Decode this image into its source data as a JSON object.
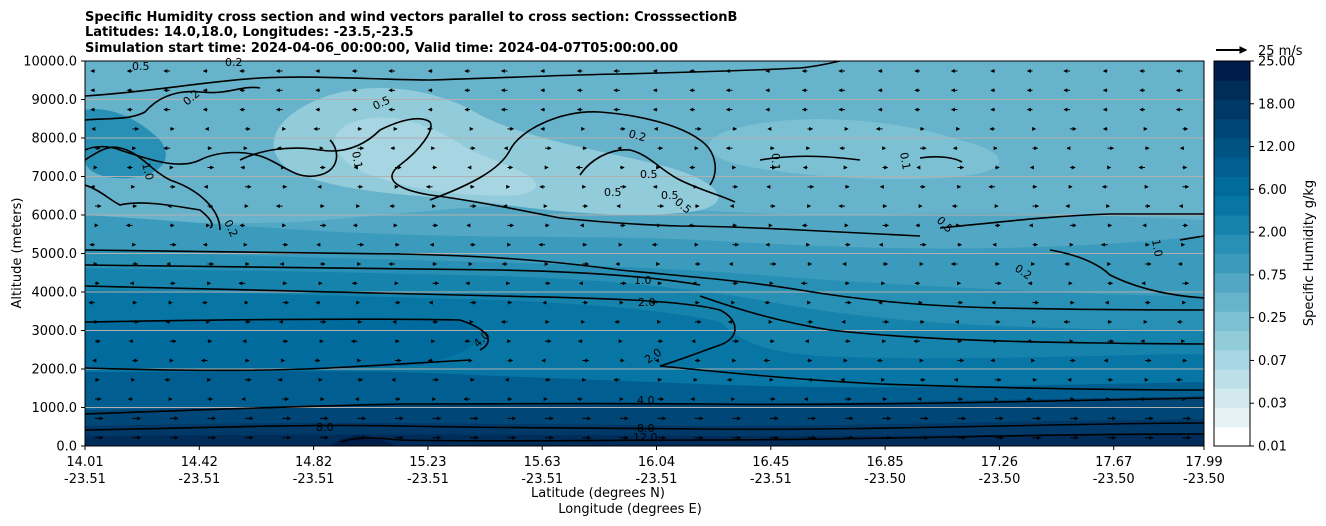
{
  "chart_data": {
    "type": "contour",
    "title_lines": [
      "Specific Humidity cross section and wind vectors parallel to cross section: CrosssectionB",
      "Latitudes: 14.0,18.0, Longitudes: -23.5,-23.5",
      "Simulation start time: 2024-04-06_00:00:00, Valid time: 2024-04-07T05:00:00.00"
    ],
    "ylabel": "Altitude (meters)",
    "xlabel_lat": "Latitude (degrees N)",
    "xlabel_lon": "Longitude (degrees E)",
    "ylim": [
      0,
      10000
    ],
    "y_ticks": [
      "0.0",
      "1000.0",
      "2000.0",
      "3000.0",
      "4000.0",
      "5000.0",
      "6000.0",
      "7000.0",
      "8000.0",
      "9000.0",
      "10000.0"
    ],
    "x_ticks": [
      {
        "lat": "14.01",
        "lon": "-23.51"
      },
      {
        "lat": "14.42",
        "lon": "-23.51"
      },
      {
        "lat": "14.82",
        "lon": "-23.51"
      },
      {
        "lat": "15.23",
        "lon": "-23.51"
      },
      {
        "lat": "15.63",
        "lon": "-23.51"
      },
      {
        "lat": "16.04",
        "lon": "-23.51"
      },
      {
        "lat": "16.45",
        "lon": "-23.51"
      },
      {
        "lat": "16.85",
        "lon": "-23.50"
      },
      {
        "lat": "17.26",
        "lon": "-23.50"
      },
      {
        "lat": "17.67",
        "lon": "-23.50"
      },
      {
        "lat": "17.99",
        "lon": "-23.50"
      }
    ],
    "colorbar": {
      "label": "Specific Humidity g/kg",
      "tick_labels": [
        "0.01",
        "0.03",
        "0.07",
        "0.25",
        "0.75",
        "2.00",
        "6.00",
        "12.00",
        "18.00",
        "25.00"
      ],
      "n_levels": 20,
      "colors": [
        "#ffffff",
        "#e6f3f6",
        "#d2e9ef",
        "#bcdfe8",
        "#a7d5e1",
        "#92cbda",
        "#7cc0d3",
        "#67b3cc",
        "#52a7c4",
        "#3b9bbc",
        "#2890b5",
        "#1683ad",
        "#0776a5",
        "#006b9c",
        "#005f90",
        "#005383",
        "#004676",
        "#003968",
        "#002c5a",
        "#001d4a"
      ]
    },
    "contour_labels": [
      "0.1",
      "0.2",
      "0.5",
      "1.0",
      "2.0",
      "4.0",
      "8.0",
      "12.0"
    ],
    "quiver_key": "25 m/s",
    "grid": true
  }
}
